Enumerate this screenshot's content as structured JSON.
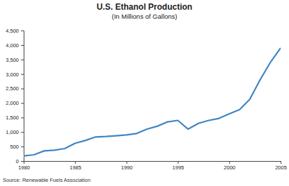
{
  "chart_data": {
    "type": "line",
    "title": "U.S. Ethanol Production",
    "subtitle": "(In Millions of Gallons)",
    "source": "Source: Renewable Fuels Association",
    "x": [
      1980,
      1981,
      1982,
      1983,
      1984,
      1985,
      1986,
      1987,
      1988,
      1989,
      1990,
      1991,
      1992,
      1993,
      1994,
      1995,
      1996,
      1997,
      1998,
      1999,
      2000,
      2001,
      2002,
      2003,
      2004,
      2005
    ],
    "values": [
      175,
      215,
      350,
      375,
      430,
      610,
      710,
      830,
      845,
      870,
      900,
      950,
      1100,
      1200,
      1350,
      1400,
      1100,
      1300,
      1400,
      1470,
      1630,
      1770,
      2130,
      2800,
      3400,
      3900
    ],
    "color": "#3f85c5",
    "xlim": [
      1980,
      2005
    ],
    "xticks": [
      1980,
      1985,
      1990,
      1995,
      2000,
      2005
    ],
    "ylim": [
      0,
      4500
    ],
    "yticks": [
      0,
      500,
      {
        "value": 1000,
        "label": "1,000"
      },
      {
        "value": 1500,
        "label": "1,500"
      },
      {
        "value": 2000,
        "label": "2,000"
      },
      {
        "value": 2500,
        "label": "2,500"
      },
      {
        "value": 3000,
        "label": "3,000"
      },
      {
        "value": 3500,
        "label": "3,500"
      },
      {
        "value": 4000,
        "label": "4,000"
      },
      {
        "value": 4500,
        "label": "4,500"
      }
    ],
    "grid": false
  }
}
